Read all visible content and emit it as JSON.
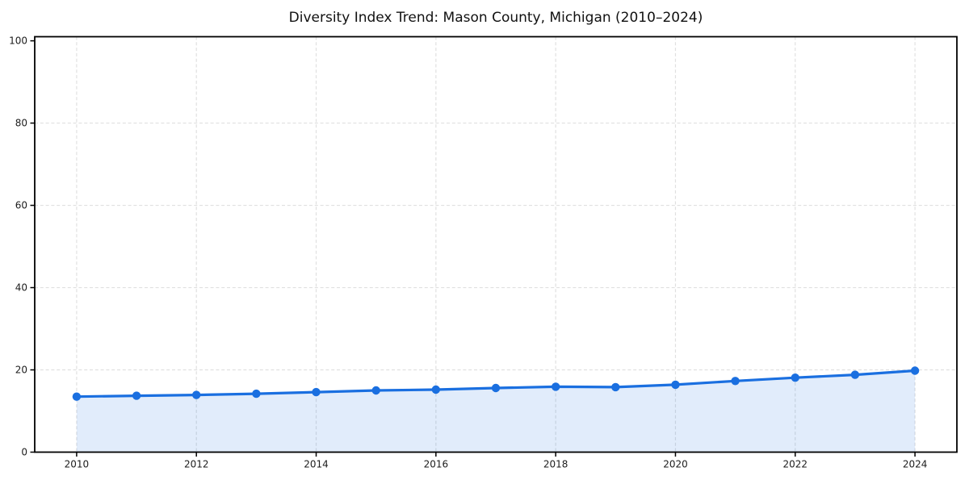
{
  "figure": {
    "background": "#ffffff"
  },
  "chart_data": {
    "type": "line",
    "title": "Diversity Index Trend: Mason County, Michigan (2010–2024)",
    "x": [
      2010,
      2011,
      2012,
      2013,
      2014,
      2015,
      2016,
      2017,
      2018,
      2019,
      2020,
      2021,
      2022,
      2023,
      2024
    ],
    "values": [
      13.5,
      13.7,
      13.9,
      14.2,
      14.6,
      15.0,
      15.2,
      15.6,
      15.9,
      15.8,
      16.4,
      17.3,
      18.1,
      18.8,
      19.8
    ],
    "xlabel": "",
    "ylabel": "",
    "xlim": [
      2009.3,
      2024.7
    ],
    "ylim": [
      0,
      101
    ],
    "xticks": [
      2010,
      2012,
      2014,
      2016,
      2018,
      2020,
      2022,
      2024
    ],
    "yticks": [
      0,
      20,
      40,
      60,
      80,
      100
    ],
    "xgrid": [
      2010,
      2012,
      2014,
      2016,
      2018,
      2020,
      2022,
      2024
    ],
    "ygrid": [
      20,
      40,
      60,
      80
    ],
    "grid_style": "dashed",
    "legend": "none",
    "marker": "circle",
    "fill_under": true,
    "line_color": "#1a6fe0",
    "fill_color": "#1a6fe0",
    "fill_opacity": 0.13,
    "grid_color": "#e0e0e0",
    "axis_color": "#000000",
    "tick_label_color": "#1c1c1c",
    "title_color": "#111111"
  }
}
